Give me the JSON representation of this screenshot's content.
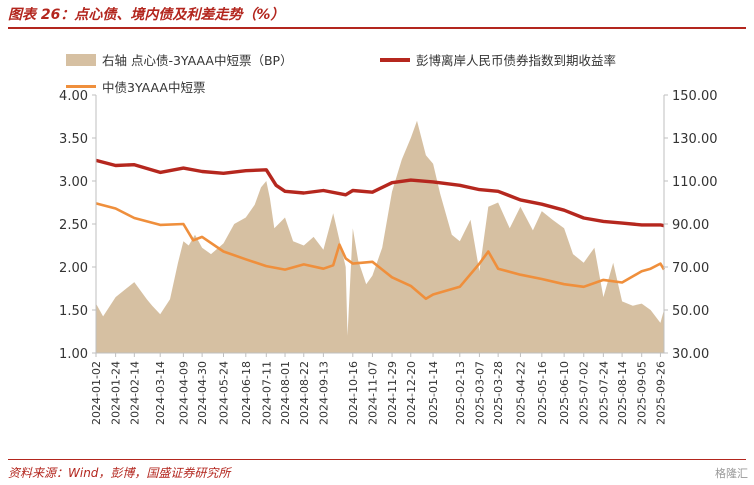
{
  "header": {
    "title": "图表 26：点心债、境内债及利差走势（%）"
  },
  "footer": {
    "source": "资料来源：Wind，彭博，国盛证券研究所",
    "watermark": "格隆汇"
  },
  "colors": {
    "spread_area": "#d6c0a2",
    "offshore_line": "#b5271e",
    "onshore_line": "#ef8f3c",
    "axis": "#bfbfbf",
    "brand": "#b3261e"
  },
  "chart_data": {
    "type": "line",
    "title": "图表 26：点心债、境内债及利差走势（%）",
    "legend_position": "top",
    "grid": false,
    "x_ticks": [
      "2024-01-02",
      "2024-01-24",
      "2024-02-14",
      "2024-03-14",
      "2024-04-09",
      "2024-04-30",
      "2024-05-24",
      "2024-06-18",
      "2024-07-11",
      "2024-08-01",
      "2024-08-22",
      "2024-09-13",
      "2024-10-16",
      "2024-11-07",
      "2024-11-29",
      "2024-12-20",
      "2025-01-14",
      "2025-02-13",
      "2025-03-07",
      "2025-03-28",
      "2025-04-22",
      "2025-05-16",
      "2025-06-10",
      "2025-07-02",
      "2025-07-24",
      "2025-08-14",
      "2025-09-05",
      "2025-09-26"
    ],
    "y_left": {
      "ticks": [
        "1.00",
        "1.50",
        "2.00",
        "2.50",
        "3.00",
        "3.50",
        "4.00"
      ],
      "range": [
        1.0,
        4.0
      ]
    },
    "y_right": {
      "ticks": [
        "30.00",
        "50.00",
        "70.00",
        "90.00",
        "110.00",
        "130.00",
        "150.00"
      ],
      "range": [
        30,
        150
      ]
    },
    "series": [
      {
        "name": "右轴 点心债-3YAAA中短票（BP）",
        "type": "area",
        "axis": "right",
        "x": [
          "2024-01-02",
          "2024-01-10",
          "2024-01-24",
          "2024-02-05",
          "2024-02-14",
          "2024-02-28",
          "2024-03-05",
          "2024-03-14",
          "2024-03-25",
          "2024-04-03",
          "2024-04-09",
          "2024-04-15",
          "2024-04-22",
          "2024-04-30",
          "2024-05-10",
          "2024-05-24",
          "2024-06-05",
          "2024-06-18",
          "2024-06-28",
          "2024-07-05",
          "2024-07-11",
          "2024-07-15",
          "2024-07-20",
          "2024-08-01",
          "2024-08-10",
          "2024-08-22",
          "2024-09-02",
          "2024-09-13",
          "2024-09-24",
          "2024-10-08",
          "2024-10-10",
          "2024-10-16",
          "2024-10-22",
          "2024-10-31",
          "2024-11-07",
          "2024-11-18",
          "2024-11-29",
          "2024-12-10",
          "2024-12-20",
          "2024-12-27",
          "2025-01-06",
          "2025-01-14",
          "2025-01-22",
          "2025-02-04",
          "2025-02-13",
          "2025-02-25",
          "2025-03-07",
          "2025-03-17",
          "2025-03-28",
          "2025-04-10",
          "2025-04-22",
          "2025-05-06",
          "2025-05-16",
          "2025-05-28",
          "2025-06-10",
          "2025-06-20",
          "2025-07-02",
          "2025-07-14",
          "2025-07-24",
          "2025-08-04",
          "2025-08-14",
          "2025-08-26",
          "2025-09-05",
          "2025-09-15",
          "2025-09-26",
          "2025-09-30"
        ],
        "values": [
          53,
          47,
          56,
          60,
          63,
          55,
          52,
          48,
          55,
          72,
          82,
          80,
          85,
          79,
          76,
          81,
          90,
          93,
          99,
          107,
          110,
          102,
          88,
          93,
          82,
          80,
          84,
          78,
          95,
          70,
          38,
          88,
          73,
          62,
          66,
          79,
          105,
          120,
          130,
          138,
          122,
          118,
          104,
          85,
          82,
          92,
          68,
          98,
          100,
          88,
          98,
          87,
          96,
          92,
          88,
          76,
          72,
          79,
          56,
          72,
          54,
          52,
          53,
          50,
          44,
          50
        ]
      },
      {
        "name": "彭博离岸人民币债券指数到期收益率",
        "type": "line",
        "axis": "left",
        "x": [
          "2024-01-02",
          "2024-01-24",
          "2024-02-14",
          "2024-03-14",
          "2024-04-09",
          "2024-04-30",
          "2024-05-24",
          "2024-06-18",
          "2024-07-11",
          "2024-07-22",
          "2024-08-01",
          "2024-08-22",
          "2024-09-13",
          "2024-10-08",
          "2024-10-16",
          "2024-11-07",
          "2024-11-29",
          "2024-12-20",
          "2025-01-14",
          "2025-02-13",
          "2025-03-07",
          "2025-03-28",
          "2025-04-22",
          "2025-05-16",
          "2025-06-10",
          "2025-07-02",
          "2025-07-24",
          "2025-08-14",
          "2025-09-05",
          "2025-09-26",
          "2025-09-30"
        ],
        "values": [
          3.24,
          3.18,
          3.19,
          3.1,
          3.15,
          3.11,
          3.09,
          3.12,
          3.13,
          2.95,
          2.88,
          2.86,
          2.89,
          2.84,
          2.89,
          2.87,
          2.98,
          3.01,
          2.99,
          2.95,
          2.9,
          2.88,
          2.78,
          2.73,
          2.66,
          2.57,
          2.53,
          2.51,
          2.49,
          2.49,
          2.48
        ]
      },
      {
        "name": "中债3YAAA中短票",
        "type": "line",
        "axis": "left",
        "x": [
          "2024-01-02",
          "2024-01-24",
          "2024-02-14",
          "2024-03-14",
          "2024-04-09",
          "2024-04-20",
          "2024-04-30",
          "2024-05-24",
          "2024-06-18",
          "2024-07-11",
          "2024-08-01",
          "2024-08-22",
          "2024-09-13",
          "2024-09-24",
          "2024-10-01",
          "2024-10-08",
          "2024-10-16",
          "2024-11-07",
          "2024-11-29",
          "2024-12-20",
          "2025-01-06",
          "2025-01-14",
          "2025-02-13",
          "2025-03-07",
          "2025-03-17",
          "2025-03-28",
          "2025-04-22",
          "2025-05-16",
          "2025-06-10",
          "2025-07-02",
          "2025-07-24",
          "2025-08-14",
          "2025-09-05",
          "2025-09-15",
          "2025-09-26",
          "2025-09-30"
        ],
        "values": [
          2.74,
          2.68,
          2.57,
          2.49,
          2.5,
          2.31,
          2.35,
          2.18,
          2.09,
          2.01,
          1.97,
          2.03,
          1.98,
          2.02,
          2.26,
          2.1,
          2.04,
          2.06,
          1.88,
          1.78,
          1.63,
          1.68,
          1.77,
          2.04,
          2.18,
          1.98,
          1.91,
          1.86,
          1.8,
          1.77,
          1.85,
          1.82,
          1.95,
          1.98,
          2.04,
          1.97
        ]
      }
    ]
  }
}
